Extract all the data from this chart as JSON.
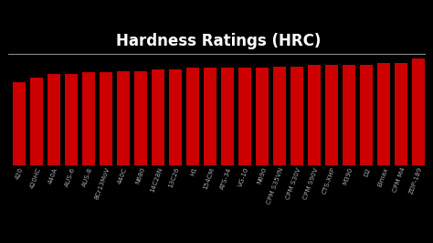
{
  "title": "Hardness Ratings (HRC)",
  "background_color": "#000000",
  "title_color": "#ffffff",
  "bar_color": "#cc0000",
  "categories": [
    "420",
    "420HC",
    "440A",
    "AUS-6",
    "AUS-8",
    "8Cr13MoV",
    "440C",
    "N680",
    "14C28N",
    "13C26",
    "H1",
    "154CM",
    "ATS-34",
    "VG-10",
    "N690",
    "CPM S35VN",
    "CPM S30V",
    "CPM S90V",
    "CTS-XHP",
    "M390",
    "D2",
    "Elmax",
    "CPM M4",
    "ZDP-189"
  ],
  "values": [
    52,
    55,
    57,
    57,
    58,
    58,
    59,
    59,
    60,
    60,
    61,
    61,
    61,
    61,
    61,
    62,
    62,
    63,
    63,
    63,
    63,
    64,
    64,
    67
  ],
  "ylim_min": 0,
  "ylim_max": 70,
  "tick_color": "#aaaaaa",
  "bar_color_edge": "#cc0000",
  "label_fontsize": 5.2,
  "title_fontsize": 12,
  "bar_width": 0.75,
  "separator_color": "#888888",
  "separator_linewidth": 0.8
}
